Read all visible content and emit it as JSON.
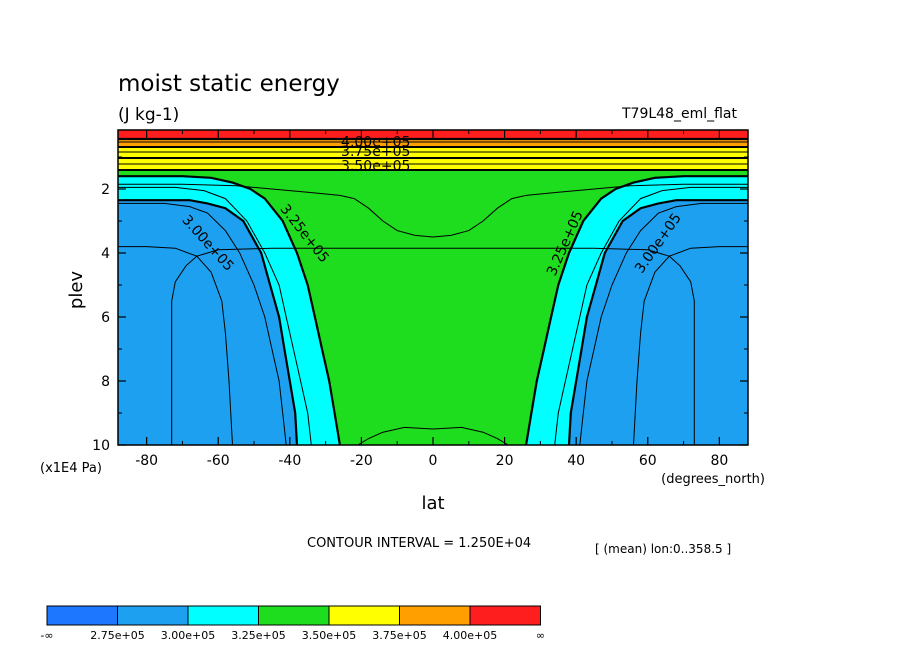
{
  "chart_data": {
    "type": "contour",
    "title": "moist static energy",
    "units": "(J kg-1)",
    "run_label": "T79L48_eml_flat",
    "xlabel": "lat",
    "xunit": "(degrees_north)",
    "ylabel": "plev",
    "yunit": "(x1E4 Pa)",
    "xlim": [
      -88,
      88
    ],
    "ylim": [
      10,
      0.2
    ],
    "x_ticks": [
      -80,
      -60,
      -40,
      -20,
      0,
      20,
      40,
      60,
      80
    ],
    "x_tick_labels": [
      "-80",
      "-60",
      "-40",
      "-20",
      "0",
      "20",
      "40",
      "60",
      "80"
    ],
    "y_ticks": [
      2,
      4,
      6,
      8,
      10
    ],
    "y_tick_labels": [
      "2",
      "4",
      "6",
      "8",
      "10"
    ],
    "contour_interval_text": "CONTOUR INTERVAL = 1.250E+04",
    "mean_text": "[ (mean) lon:0..358.5 ]",
    "contour_labels": [
      {
        "text": "4.00e+05",
        "lat": -16,
        "plev": 0.55,
        "angle": 0
      },
      {
        "text": "3.75e+05",
        "lat": -16,
        "plev": 0.85,
        "angle": 0
      },
      {
        "text": "3.50e+05",
        "lat": -16,
        "plev": 1.3,
        "angle": 0
      },
      {
        "text": "3.25e+05",
        "lat": -36,
        "plev": 3.4,
        "angle": 52
      },
      {
        "text": "3.00e+05",
        "lat": -63,
        "plev": 3.7,
        "angle": 48
      },
      {
        "text": "3.25e+05",
        "lat": 37,
        "plev": 3.7,
        "angle": -66
      },
      {
        "text": "3.00e+05",
        "lat": 63,
        "plev": 3.7,
        "angle": -55
      }
    ],
    "colorbar": {
      "levels": [
        "-∞",
        "2.75e+05",
        "3.00e+05",
        "3.25e+05",
        "3.50e+05",
        "3.75e+05",
        "4.00e+05",
        "∞"
      ],
      "colors": [
        "#1e78ff",
        "#1ea0f0",
        "#00ffff",
        "#1edc1e",
        "#ffff00",
        "#ffa000",
        "#ff1e1e"
      ]
    },
    "colors": {
      "c275": "#1e78ff",
      "c300": "#1ea0f0",
      "c325": "#00ffff",
      "c350": "#1edc1e",
      "c375": "#ffff00",
      "c400": "#ffa000",
      "c425": "#ff1e1e"
    }
  }
}
